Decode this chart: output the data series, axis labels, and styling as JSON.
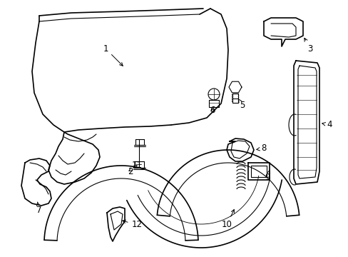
{
  "background_color": "#ffffff",
  "line_color": "#000000",
  "figsize": [
    4.89,
    3.6
  ],
  "dpi": 100,
  "xlim": [
    0,
    489
  ],
  "ylim": [
    0,
    360
  ]
}
